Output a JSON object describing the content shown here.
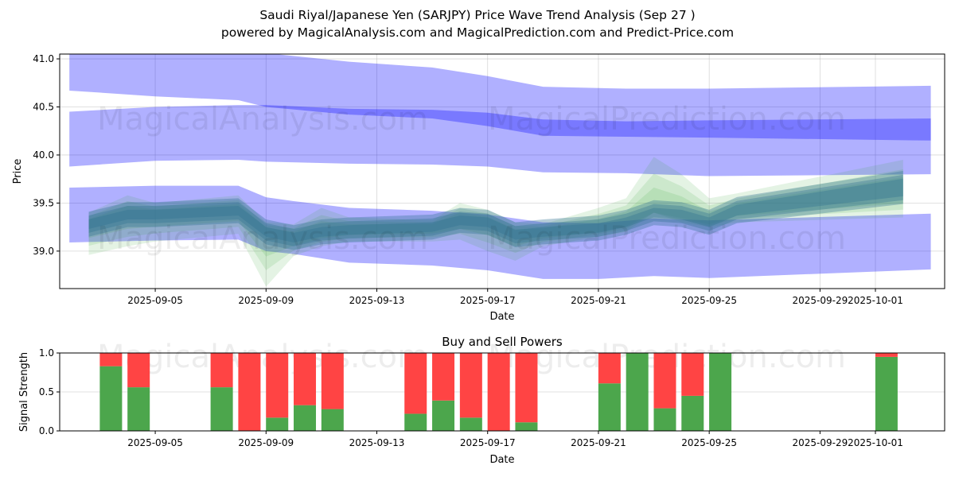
{
  "title_line1": "Saudi Riyal/Japanese Yen (SARJPY) Price Wave Trend Analysis (Sep 27 )",
  "title_line2": "powered by MagicalAnalysis.com and MagicalPrediction.com and Predict-Price.com",
  "watermarks": [
    "MagicalAnalysis.com",
    "MagicalPrediction.com"
  ],
  "colors": {
    "band": "#0000ff",
    "forecast": "#2ca02c",
    "cluster": "#2f6f8f",
    "buy": "#4ca64c",
    "sell": "#ff4444"
  },
  "chart_data": [
    {
      "type": "area",
      "title": "",
      "xlabel": "Date",
      "ylabel": "Price",
      "x_origin_date": "2025-09-05",
      "x_unit": "days since 2025-09-05",
      "xlim": [
        -3.45,
        28.5
      ],
      "ylim": [
        38.61,
        41.05
      ],
      "xticks": [
        {
          "day": 0,
          "label": "2025-09-05"
        },
        {
          "day": 4,
          "label": "2025-09-09"
        },
        {
          "day": 8,
          "label": "2025-09-13"
        },
        {
          "day": 12,
          "label": "2025-09-17"
        },
        {
          "day": 16,
          "label": "2025-09-21"
        },
        {
          "day": 20,
          "label": "2025-09-25"
        },
        {
          "day": 24,
          "label": "2025-09-29"
        },
        {
          "day": 26,
          "label": "2025-10-01"
        }
      ],
      "yticks": [
        "39.0",
        "39.5",
        "40.0",
        "40.5",
        "41.0"
      ],
      "bands": [
        {
          "name": "upper-band",
          "points": [
            [
              -3.1,
              41.2,
              40.67
            ],
            [
              0,
              41.15,
              40.61
            ],
            [
              3,
              41.1,
              40.57
            ],
            [
              4,
              41.06,
              40.5
            ],
            [
              7,
              40.97,
              40.42
            ],
            [
              10,
              40.91,
              40.38
            ],
            [
              12,
              40.82,
              40.3
            ],
            [
              14,
              40.71,
              40.2
            ],
            [
              17,
              40.69,
              40.19
            ],
            [
              20,
              40.69,
              40.18
            ],
            [
              28,
              40.72,
              40.15
            ]
          ]
        },
        {
          "name": "middle-band",
          "points": [
            [
              -3.1,
              40.45,
              39.88
            ],
            [
              0,
              40.5,
              39.94
            ],
            [
              3,
              40.52,
              39.95
            ],
            [
              4,
              40.52,
              39.93
            ],
            [
              7,
              40.48,
              39.91
            ],
            [
              10,
              40.47,
              39.9
            ],
            [
              12,
              40.44,
              39.88
            ],
            [
              14,
              40.37,
              39.82
            ],
            [
              17,
              40.35,
              39.81
            ],
            [
              20,
              40.36,
              39.78
            ],
            [
              28,
              40.38,
              39.8
            ]
          ]
        },
        {
          "name": "lower-band",
          "points": [
            [
              -3.1,
              39.66,
              39.09
            ],
            [
              0,
              39.68,
              39.11
            ],
            [
              3,
              39.68,
              39.12
            ],
            [
              4,
              39.56,
              39.0
            ],
            [
              5,
              39.52,
              38.97
            ],
            [
              7,
              39.45,
              38.88
            ],
            [
              10,
              39.42,
              38.85
            ],
            [
              12,
              39.38,
              38.8
            ],
            [
              14,
              39.3,
              38.71
            ],
            [
              16,
              39.29,
              38.71
            ],
            [
              18,
              39.34,
              38.74
            ],
            [
              20,
              39.32,
              38.72
            ],
            [
              28,
              39.39,
              38.81
            ]
          ]
        }
      ],
      "forecast_envelope": [
        [
          -2.4,
          39.4,
          38.96
        ],
        [
          -1,
          39.58,
          39.05
        ],
        [
          0,
          39.5,
          39.1
        ],
        [
          3,
          39.58,
          39.18
        ],
        [
          4,
          39.3,
          38.63
        ],
        [
          5,
          39.28,
          38.95
        ],
        [
          6,
          39.45,
          39.05
        ],
        [
          7,
          39.35,
          39.1
        ],
        [
          10,
          39.32,
          39.1
        ],
        [
          11,
          39.5,
          39.12
        ],
        [
          12,
          39.43,
          39.0
        ],
        [
          13,
          39.3,
          38.9
        ],
        [
          14,
          39.28,
          39.05
        ],
        [
          16,
          39.45,
          39.15
        ],
        [
          17,
          39.55,
          39.2
        ],
        [
          18,
          39.98,
          39.4
        ],
        [
          19,
          39.8,
          39.3
        ],
        [
          20,
          39.55,
          39.25
        ],
        [
          21,
          39.6,
          39.3
        ],
        [
          27,
          39.95,
          39.35
        ]
      ],
      "price_path": [
        [
          -2.4,
          39.28
        ],
        [
          -1,
          39.38
        ],
        [
          0,
          39.38
        ],
        [
          3,
          39.42
        ],
        [
          4,
          39.2
        ],
        [
          5,
          39.14
        ],
        [
          6,
          39.2
        ],
        [
          7,
          39.22
        ],
        [
          10,
          39.25
        ],
        [
          11,
          39.32
        ],
        [
          12,
          39.3
        ],
        [
          13,
          39.17
        ],
        [
          14,
          39.2
        ],
        [
          16,
          39.24
        ],
        [
          17,
          39.3
        ],
        [
          18,
          39.4
        ],
        [
          19,
          39.38
        ],
        [
          20,
          39.3
        ],
        [
          21,
          39.42
        ],
        [
          27,
          39.62
        ]
      ]
    },
    {
      "type": "bar",
      "title": "Buy and Sell Powers",
      "xlabel": "Date",
      "ylabel": "Signal Strength",
      "ylim": [
        0,
        1
      ],
      "yticks": [
        "0.0",
        "0.5",
        "1.0"
      ],
      "categories": [
        "2025-09-03",
        "2025-09-04",
        "2025-09-07",
        "2025-09-08",
        "2025-09-09",
        "2025-09-10",
        "2025-09-11",
        "2025-09-14",
        "2025-09-15",
        "2025-09-16",
        "2025-09-17",
        "2025-09-18",
        "2025-09-21",
        "2025-09-22",
        "2025-09-23",
        "2025-09-24",
        "2025-09-25",
        "2025-10-01"
      ],
      "series": [
        {
          "name": "Buy",
          "values": [
            0.83,
            0.56,
            0.56,
            0.0,
            0.17,
            0.33,
            0.28,
            0.22,
            0.39,
            0.17,
            0.0,
            0.11,
            0.61,
            1.0,
            0.29,
            0.45,
            1.0,
            0.95
          ]
        },
        {
          "name": "Sell",
          "values": [
            0.17,
            0.44,
            0.44,
            1.0,
            0.83,
            0.67,
            0.72,
            0.78,
            0.61,
            0.83,
            1.0,
            0.89,
            0.39,
            0.0,
            0.71,
            0.55,
            0.0,
            0.05
          ]
        }
      ]
    }
  ]
}
